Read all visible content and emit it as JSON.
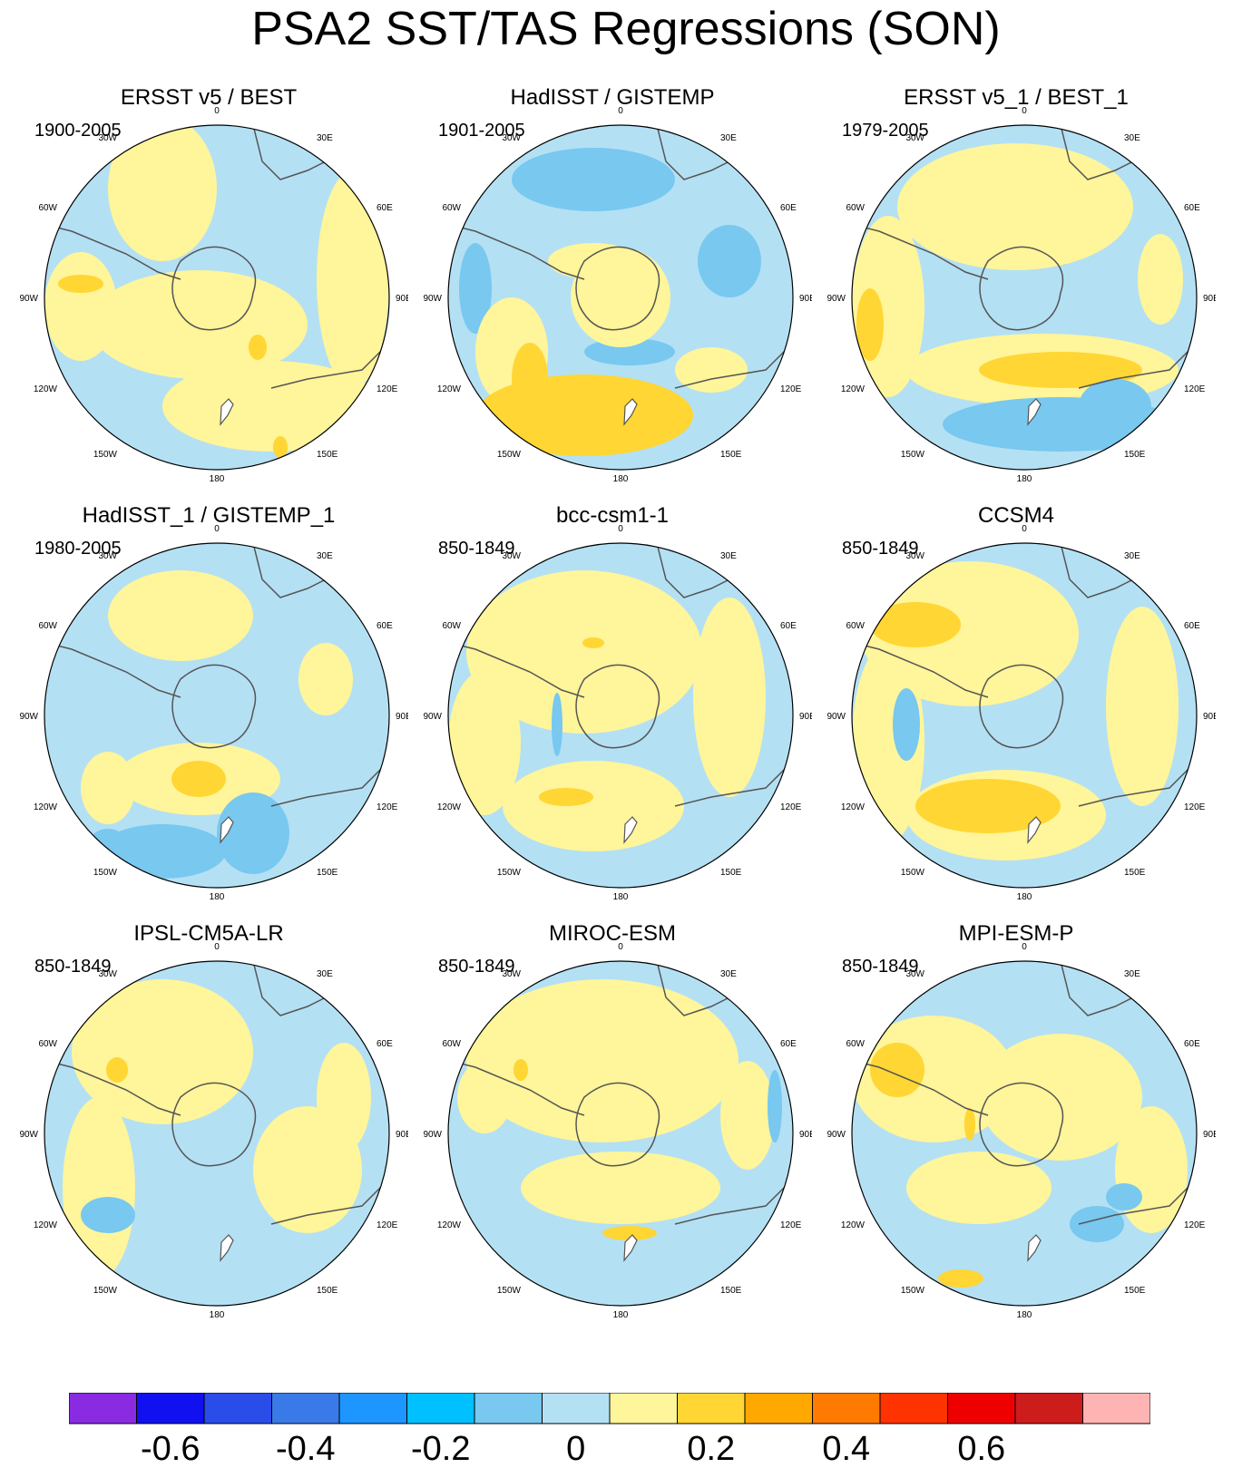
{
  "title": "PSA2 SST/TAS Regressions (SON)",
  "longitude_labels": [
    "0",
    "30E",
    "60E",
    "90E",
    "120E",
    "150E",
    "180",
    "150W",
    "120W",
    "90W",
    "60W",
    "30W"
  ],
  "panels": [
    {
      "title": "ERSST v5 / BEST",
      "period": "1900-2005"
    },
    {
      "title": "HadISST / GISTEMP",
      "period": "1901-2005"
    },
    {
      "title": "ERSST v5_1 / BEST_1",
      "period": "1979-2005"
    },
    {
      "title": "HadISST_1 / GISTEMP_1",
      "period": "1980-2005"
    },
    {
      "title": "bcc-csm1-1",
      "period": "850-1849"
    },
    {
      "title": "CCSM4",
      "period": "850-1849"
    },
    {
      "title": "IPSL-CM5A-LR",
      "period": "850-1849"
    },
    {
      "title": "MIROC-ESM",
      "period": "850-1849"
    },
    {
      "title": "MPI-ESM-P",
      "period": "850-1849"
    }
  ],
  "colorbar": {
    "colors": [
      "#8a2be2",
      "#1010f0",
      "#2a4ce8",
      "#3a7ae8",
      "#1e96ff",
      "#00c0ff",
      "#78c8f0",
      "#b4e0f4",
      "#fff59a",
      "#ffd633",
      "#ffa800",
      "#ff7a00",
      "#ff3300",
      "#ee0000",
      "#cc1c1c",
      "#ffb4b4"
    ],
    "tick_labels": [
      "-0.6",
      "-0.4",
      "-0.2",
      "0",
      "0.2",
      "0.4",
      "0.6"
    ],
    "tick_values": [
      -0.6,
      -0.4,
      -0.2,
      0,
      0.2,
      0.4,
      0.6
    ]
  }
}
